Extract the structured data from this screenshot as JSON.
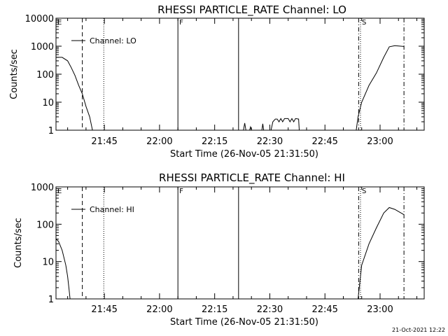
{
  "footer": {
    "timestamp": "21-Oct-2021 12:22"
  },
  "chart_data": [
    {
      "type": "line",
      "title": "RHESSI PARTICLE_RATE Channel: LO",
      "xlabel": "Start Time (26-Nov-05 21:31:50)",
      "ylabel": "Counts/sec",
      "xscale": "time",
      "yscale": "log",
      "xlim": [
        "21:31:50",
        "23:12:00"
      ],
      "ylim": [
        1,
        10000
      ],
      "xticks": [
        "21:45",
        "22:00",
        "22:15",
        "22:30",
        "22:45",
        "23:00"
      ],
      "yticks": [
        "1",
        "10",
        "100",
        "1000",
        "10000"
      ],
      "legend": {
        "entries": [
          "Channel: LO"
        ],
        "position": "top-left"
      },
      "markers": [
        {
          "label": "E",
          "time": "21:31:50",
          "style": "solid"
        },
        {
          "label": "",
          "time": "21:39:00",
          "style": "dashed"
        },
        {
          "label": "",
          "time": "21:44:50",
          "style": "dotted"
        },
        {
          "label": "F",
          "time": "22:05:00",
          "style": "solid"
        },
        {
          "label": "",
          "time": "22:21:30",
          "style": "solid"
        },
        {
          "label": "",
          "time": "22:54:10",
          "style": "dash-dot"
        },
        {
          "label": "S",
          "time": "22:54:40",
          "style": "dotted"
        },
        {
          "label": "",
          "time": "23:06:30",
          "style": "dash-dot"
        }
      ],
      "series": [
        {
          "name": "Channel: LO",
          "segments": [
            [
              [
                "21:31:50",
                400
              ],
              [
                "21:33:30",
                400
              ],
              [
                "21:35:00",
                300
              ],
              [
                "21:36:00",
                170
              ],
              [
                "21:37:00",
                90
              ],
              [
                "21:38:00",
                40
              ],
              [
                "21:39:00",
                20
              ],
              [
                "21:40:00",
                7
              ],
              [
                "21:41:00",
                3
              ],
              [
                "21:41:45",
                1
              ]
            ],
            [
              [
                "22:22:50",
                1
              ],
              [
                "22:23:10",
                1.8
              ],
              [
                "22:23:30",
                1
              ]
            ],
            [
              [
                "22:24:30",
                1
              ],
              [
                "22:24:45",
                1.3
              ],
              [
                "22:25:00",
                1
              ]
            ],
            [
              [
                "22:27:50",
                1
              ],
              [
                "22:28:05",
                1.7
              ],
              [
                "22:28:20",
                1
              ]
            ],
            [
              [
                "22:30:20",
                1
              ],
              [
                "22:30:50",
                2.0
              ],
              [
                "22:31:30",
                2.5
              ],
              [
                "22:32:00",
                2.5
              ],
              [
                "22:32:30",
                2.0
              ],
              [
                "22:33:00",
                2.6
              ],
              [
                "22:33:30",
                2.0
              ],
              [
                "22:34:00",
                2.6
              ],
              [
                "22:35:00",
                2.6
              ],
              [
                "22:35:30",
                2.0
              ],
              [
                "22:36:00",
                2.6
              ],
              [
                "22:36:30",
                2.0
              ],
              [
                "22:37:00",
                2.6
              ],
              [
                "22:37:50",
                2.5
              ],
              [
                "22:38:00",
                1
              ]
            ],
            [
              [
                "22:53:30",
                1
              ],
              [
                "22:54:00",
                3
              ],
              [
                "22:55:00",
                10
              ],
              [
                "22:57:00",
                40
              ],
              [
                "22:59:00",
                110
              ],
              [
                "23:01:00",
                400
              ],
              [
                "23:02:30",
                950
              ],
              [
                "23:04:00",
                1050
              ],
              [
                "23:06:30",
                980
              ]
            ]
          ]
        }
      ]
    },
    {
      "type": "line",
      "title": "RHESSI PARTICLE_RATE Channel: HI",
      "xlabel": "Start Time (26-Nov-05 21:31:50)",
      "ylabel": "Counts/sec",
      "xscale": "time",
      "yscale": "log",
      "xlim": [
        "21:31:50",
        "23:12:00"
      ],
      "ylim": [
        1,
        1000
      ],
      "xticks": [
        "21:45",
        "22:00",
        "22:15",
        "22:30",
        "22:45",
        "23:00"
      ],
      "yticks": [
        "1",
        "10",
        "100",
        "1000"
      ],
      "legend": {
        "entries": [
          "Channel: HI"
        ],
        "position": "top-left"
      },
      "markers": [
        {
          "label": "E",
          "time": "21:31:50",
          "style": "solid"
        },
        {
          "label": "",
          "time": "21:39:00",
          "style": "dashed"
        },
        {
          "label": "",
          "time": "21:44:50",
          "style": "dotted"
        },
        {
          "label": "F",
          "time": "22:05:00",
          "style": "solid"
        },
        {
          "label": "",
          "time": "22:21:30",
          "style": "solid"
        },
        {
          "label": "",
          "time": "22:54:10",
          "style": "dash-dot"
        },
        {
          "label": "S",
          "time": "22:54:40",
          "style": "dotted"
        },
        {
          "label": "",
          "time": "23:06:30",
          "style": "dash-dot"
        }
      ],
      "series": [
        {
          "name": "Channel: HI",
          "segments": [
            [
              [
                "21:31:50",
                40
              ],
              [
                "21:32:30",
                35
              ],
              [
                "21:33:30",
                20
              ],
              [
                "21:34:30",
                8
              ],
              [
                "21:35:00",
                4
              ],
              [
                "21:35:20",
                2
              ],
              [
                "21:35:40",
                1
              ]
            ],
            [
              [
                "22:54:00",
                1
              ],
              [
                "22:55:00",
                8
              ],
              [
                "22:57:00",
                30
              ],
              [
                "22:59:00",
                80
              ],
              [
                "23:01:00",
                200
              ],
              [
                "23:02:30",
                280
              ],
              [
                "23:04:00",
                250
              ],
              [
                "23:06:30",
                180
              ]
            ]
          ]
        }
      ]
    }
  ]
}
